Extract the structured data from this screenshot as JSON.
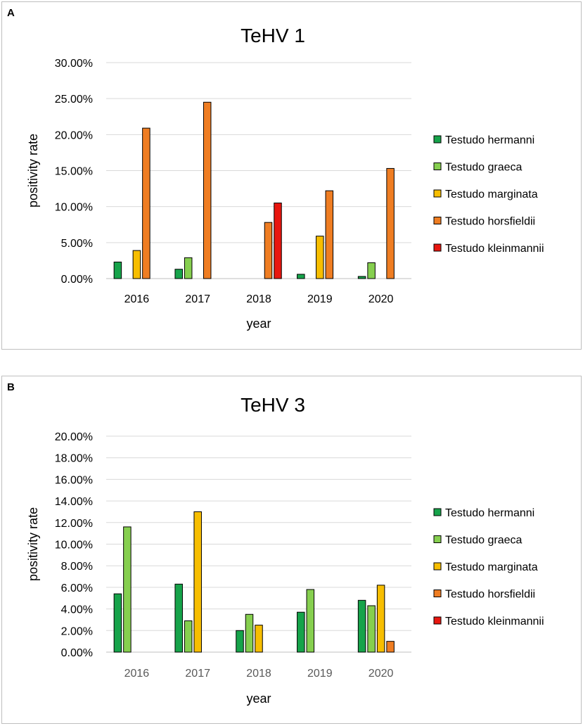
{
  "colors": {
    "Testudo hermanni": "#16a34a",
    "Testudo graeca": "#86cf4f",
    "Testudo marginata": "#f7be00",
    "Testudo horsfieldii": "#ef7d22",
    "Testudo kleinmannii": "#e8160f",
    "grid": "#d9d9d9",
    "axis": "#bfbfbf"
  },
  "chart_data": [
    {
      "panel": "A",
      "type": "bar",
      "title": "TeHV 1",
      "xlabel": "year",
      "ylabel": "positivity rate",
      "ylim": [
        0,
        30
      ],
      "yticks": [
        0,
        5,
        10,
        15,
        20,
        25,
        30
      ],
      "ytick_labels": [
        "0.00%",
        "5.00%",
        "10.00%",
        "15.00%",
        "20.00%",
        "25.00%",
        "30.00%"
      ],
      "categories": [
        "2016",
        "2017",
        "2018",
        "2019",
        "2020"
      ],
      "series": [
        {
          "name": "Testudo hermanni",
          "values": [
            2.3,
            1.3,
            0,
            0.6,
            0.3
          ]
        },
        {
          "name": "Testudo graeca",
          "values": [
            0,
            2.9,
            0,
            0,
            2.2
          ]
        },
        {
          "name": "Testudo marginata",
          "values": [
            3.9,
            0,
            0,
            5.9,
            0
          ]
        },
        {
          "name": "Testudo horsfieldii",
          "values": [
            20.9,
            24.5,
            7.8,
            12.2,
            15.3
          ]
        },
        {
          "name": "Testudo kleinmannii",
          "values": [
            0,
            0,
            10.5,
            0,
            0
          ]
        }
      ],
      "legend": "right"
    },
    {
      "panel": "B",
      "type": "bar",
      "title": "TeHV 3",
      "xlabel": "year",
      "ylabel": "positivity rate",
      "ylim": [
        0,
        20
      ],
      "yticks": [
        0,
        2,
        4,
        6,
        8,
        10,
        12,
        14,
        16,
        18,
        20
      ],
      "ytick_labels": [
        "0.00%",
        "2.00%",
        "4.00%",
        "6.00%",
        "8.00%",
        "10.00%",
        "12.00%",
        "14.00%",
        "16.00%",
        "18.00%",
        "20.00%"
      ],
      "categories": [
        "2016",
        "2017",
        "2018",
        "2019",
        "2020"
      ],
      "series": [
        {
          "name": "Testudo hermanni",
          "values": [
            5.4,
            6.3,
            2.0,
            3.7,
            4.8
          ]
        },
        {
          "name": "Testudo graeca",
          "values": [
            11.6,
            2.9,
            3.5,
            5.8,
            4.3
          ]
        },
        {
          "name": "Testudo marginata",
          "values": [
            0,
            13.0,
            2.5,
            0,
            6.2
          ]
        },
        {
          "name": "Testudo horsfieldii",
          "values": [
            0,
            0,
            0,
            0,
            1.0
          ]
        },
        {
          "name": "Testudo kleinmannii",
          "values": [
            0,
            0,
            0,
            0,
            0
          ]
        }
      ],
      "legend": "right"
    }
  ],
  "panels": {
    "A": {
      "label": "A"
    },
    "B": {
      "label": "B"
    }
  }
}
